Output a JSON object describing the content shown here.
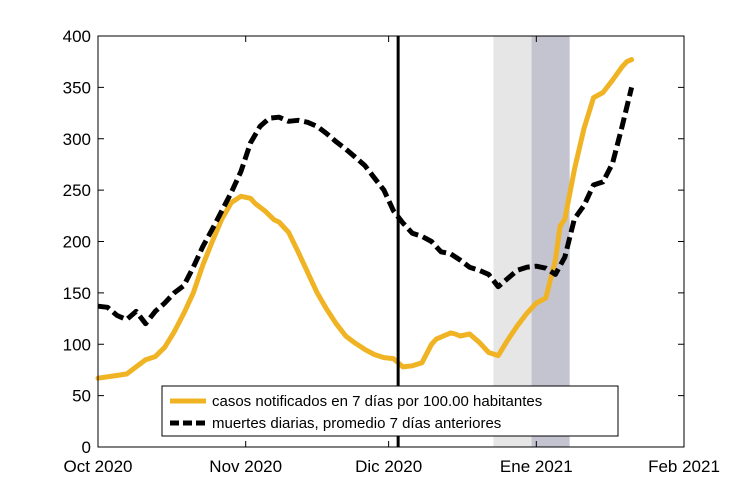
{
  "chart_data": {
    "type": "line",
    "title": "",
    "xlabel": "",
    "ylabel": "",
    "ylim": [
      0,
      400
    ],
    "y_ticks": [
      0,
      50,
      100,
      150,
      200,
      250,
      300,
      350,
      400
    ],
    "x_tick_labels": [
      "Oct 2020",
      "Nov 2020",
      "Dic 2020",
      "Ene 2021",
      "Feb 2021"
    ],
    "x_range_days": [
      0,
      123
    ],
    "x_tick_days": [
      0,
      31,
      61,
      92,
      123
    ],
    "grid": false,
    "legend_position": "bottom-center",
    "vertical_line_day": 63,
    "shaded_regions": [
      {
        "start_day": 83,
        "end_day": 91,
        "color": "#e6e6e6"
      },
      {
        "start_day": 91,
        "end_day": 99,
        "color": "#c4c4d0"
      }
    ],
    "series": [
      {
        "name": "casos notificados en 7 días por 100.00 habitantes",
        "color": "#f0b323",
        "style": "solid",
        "x": [
          0,
          3,
          6,
          8,
          10,
          12,
          14,
          16,
          18,
          20,
          22,
          24,
          26,
          28,
          30,
          32,
          33,
          35,
          37,
          38,
          40,
          42,
          44,
          46,
          48,
          50,
          52,
          54,
          56,
          58,
          60,
          62,
          64,
          66,
          68,
          70,
          71,
          73,
          74,
          75,
          76,
          78,
          80,
          82,
          84,
          86,
          88,
          90,
          92,
          94,
          96,
          97,
          98,
          100,
          102,
          104,
          106,
          108,
          110,
          111,
          112
        ],
        "y": [
          67,
          69,
          71,
          78,
          85,
          88,
          97,
          112,
          130,
          150,
          177,
          200,
          222,
          238,
          244,
          242,
          237,
          230,
          221,
          219,
          209,
          190,
          170,
          150,
          134,
          120,
          108,
          101,
          95,
          90,
          87,
          86,
          78,
          79,
          82,
          100,
          105,
          109,
          111,
          110,
          108,
          110,
          102,
          92,
          89,
          104,
          118,
          130,
          140,
          145,
          182,
          215,
          222,
          270,
          310,
          340,
          345,
          357,
          370,
          375,
          377
        ]
      },
      {
        "name": "muertes diarias, promedio 7 días anteriores",
        "color": "#000000",
        "style": "dashed",
        "x": [
          0,
          2,
          4,
          6,
          8,
          10,
          12,
          14,
          16,
          18,
          20,
          22,
          24,
          26,
          28,
          30,
          32,
          34,
          35,
          36,
          38,
          40,
          42,
          44,
          46,
          48,
          50,
          52,
          54,
          56,
          58,
          60,
          62,
          64,
          66,
          68,
          70,
          72,
          74,
          76,
          78,
          80,
          82,
          84,
          86,
          88,
          90,
          92,
          94,
          96,
          98,
          100,
          102,
          104,
          106,
          108,
          110,
          112
        ],
        "y": [
          137,
          136,
          128,
          124,
          132,
          120,
          132,
          140,
          150,
          157,
          175,
          195,
          212,
          230,
          248,
          268,
          296,
          312,
          316,
          320,
          321,
          317,
          318,
          316,
          312,
          305,
          297,
          290,
          282,
          274,
          262,
          250,
          230,
          218,
          208,
          205,
          200,
          190,
          188,
          182,
          175,
          172,
          168,
          156,
          164,
          172,
          175,
          176,
          174,
          168,
          185,
          222,
          235,
          255,
          258,
          276,
          312,
          350
        ]
      }
    ]
  }
}
